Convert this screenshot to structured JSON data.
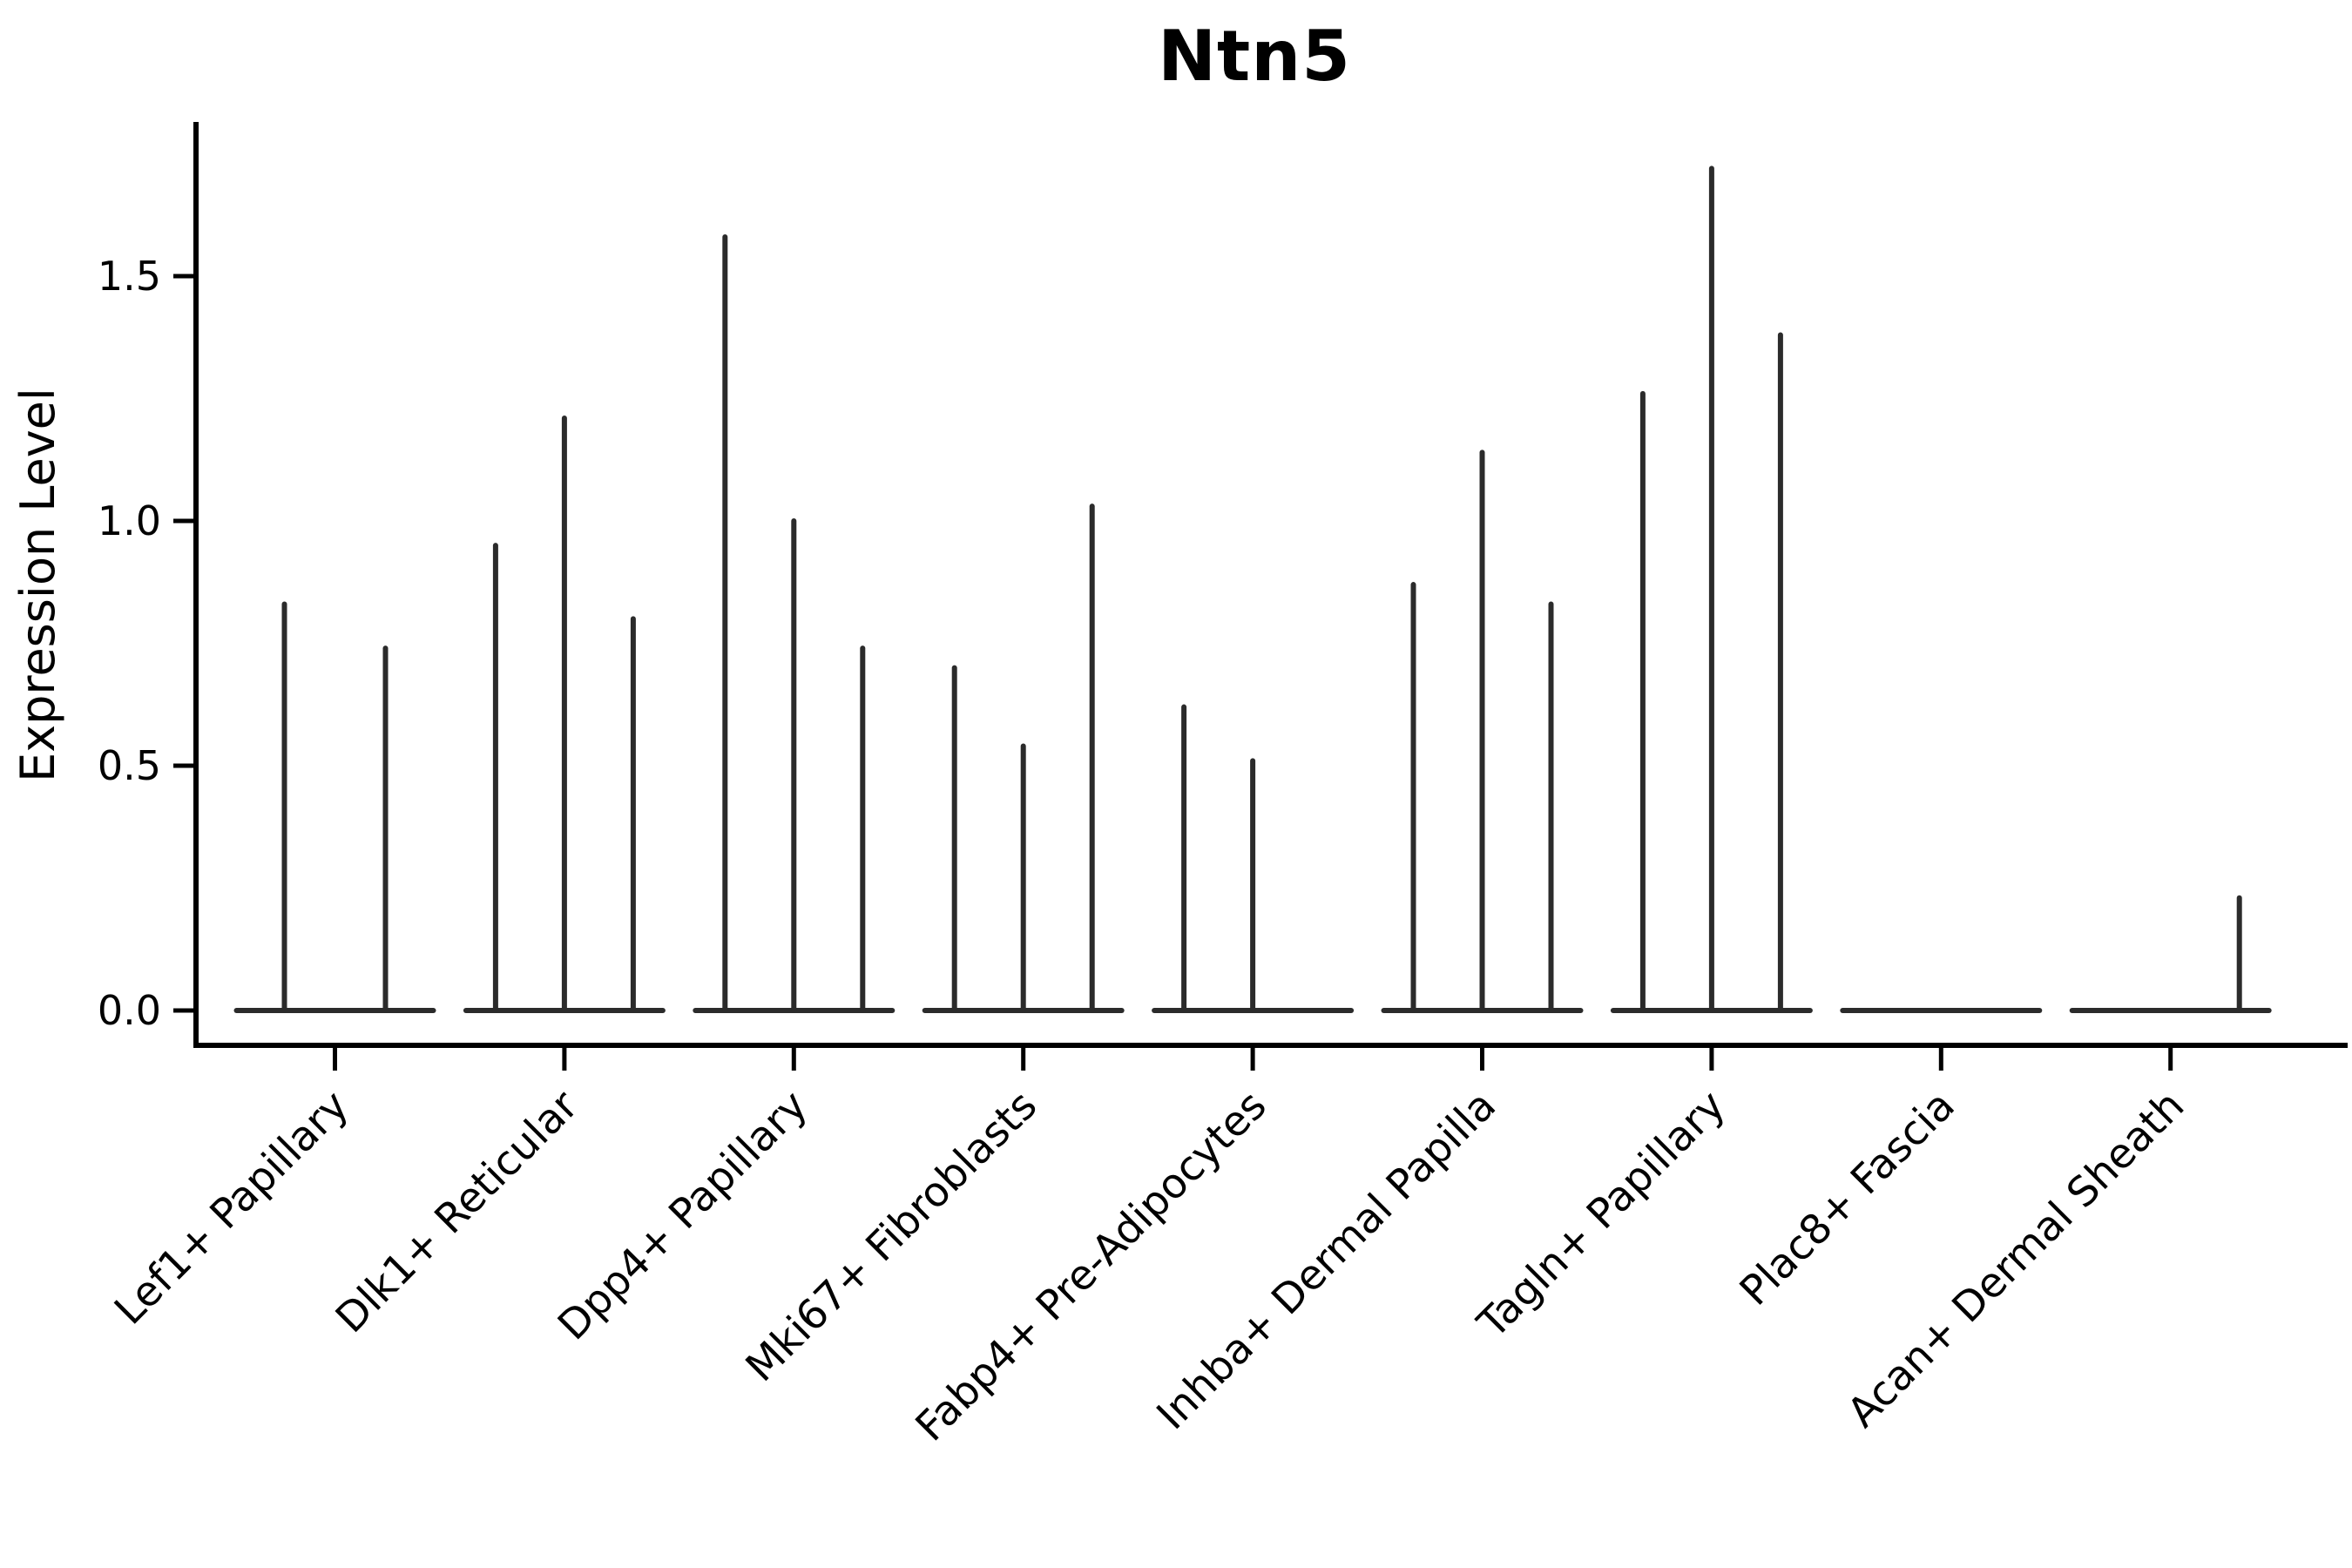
{
  "title": "Ntn5",
  "axes": {
    "ylabel": "Expression Level",
    "ytick_labels": [
      "0.0",
      "0.5",
      "1.0",
      "1.5"
    ],
    "yticks": [
      0.0,
      0.5,
      1.0,
      1.5
    ]
  },
  "colors": {
    "violin_line": "#2b2b2b",
    "axis": "#000000",
    "text": "#000000",
    "background": "#ffffff"
  },
  "chart_data": {
    "type": "violin",
    "title": "Ntn5",
    "xlabel": "",
    "ylabel": "Expression Level",
    "ylim": [
      -0.08,
      1.81
    ],
    "yticks": [
      0.0,
      0.5,
      1.0,
      1.5
    ],
    "grid": false,
    "legend": "none",
    "note": "collapsed violins: nearly all cells at 0 expression, each violin shown as flat base at 0 with a thin spike to its maximum expression value",
    "categories": [
      "Lef1+ Papillary",
      "Dlk1+ Reticular",
      "Dpp4+ Papillary",
      "Mki67+ Fibroblasts",
      "Fabp4+ Pre-Adipocytes",
      "Inhba+ Dermal Papilla",
      "Tagln+ Papillary",
      "Plac8+ Fascia",
      "Acan+ Dermal Sheath"
    ],
    "series": [
      {
        "category": "Lef1+ Papillary",
        "violin_max_values": [
          0.83,
          0.74
        ]
      },
      {
        "category": "Dlk1+ Reticular",
        "violin_max_values": [
          0.95,
          1.21,
          0.8
        ]
      },
      {
        "category": "Dpp4+ Papillary",
        "violin_max_values": [
          1.58,
          1.0,
          0.74
        ]
      },
      {
        "category": "Mki67+ Fibroblasts",
        "violin_max_values": [
          0.7,
          0.54,
          1.03
        ]
      },
      {
        "category": "Fabp4+ Pre-Adipocytes",
        "violin_max_values": [
          0.62,
          0.51,
          0.0
        ]
      },
      {
        "category": "Inhba+ Dermal Papilla",
        "violin_max_values": [
          0.87,
          1.14,
          0.83
        ]
      },
      {
        "category": "Tagln+ Papillary",
        "violin_max_values": [
          1.26,
          1.72,
          1.38
        ]
      },
      {
        "category": "Plac8+ Fascia",
        "violin_max_values": [
          0.0,
          0.0,
          0.0
        ]
      },
      {
        "category": "Acan+ Dermal Sheath",
        "violin_max_values": [
          0.0,
          0.0,
          0.23
        ]
      }
    ]
  }
}
